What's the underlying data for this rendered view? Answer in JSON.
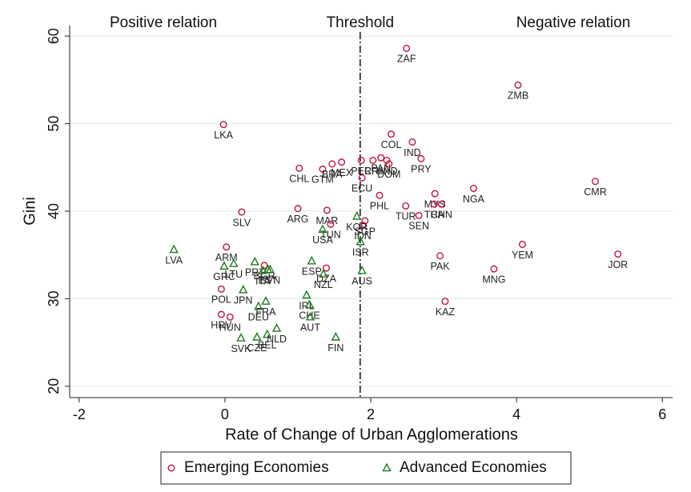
{
  "chart_data": {
    "type": "scatter",
    "annotations": {
      "left": "Positive relation",
      "right": "Negative relation"
    },
    "threshold": {
      "label": "Threshold",
      "x": 1.855
    },
    "x_label": "Rate of Change of Urban Agglomerations",
    "y_label": "Gini",
    "xlim": [
      -2.13,
      6.14
    ],
    "ylim": [
      18.7,
      61.2
    ],
    "xticks": [
      -2,
      0,
      2,
      4,
      6
    ],
    "yticks": [
      20,
      30,
      40,
      50,
      60
    ],
    "grid": true,
    "series": [
      {
        "name": "Emerging Economies",
        "color": "#c0143c",
        "marker": "circle",
        "labels": [
          "ZAF",
          "ZMB",
          "LKA",
          "COL",
          "IND",
          "PRY",
          "CHL",
          "GTM",
          "BRA",
          "MEX",
          "PER",
          "CRI",
          "PAN",
          "HND",
          "DOM",
          "ECU",
          "CMR",
          "NGA",
          "PHL",
          "MYS",
          "THA",
          "CHN",
          "TUR",
          "SEN",
          "ARG",
          "MAR",
          "TUN",
          "SLV",
          "SGP",
          "IDN",
          "YEM",
          "JOR",
          "PAK",
          "MNG",
          "KAZ",
          "ARM",
          "POL",
          "HRV",
          "HUN",
          "BGR",
          "DZA"
        ],
        "x": [
          2.49,
          4.02,
          -0.02,
          2.28,
          2.57,
          2.69,
          1.02,
          1.34,
          1.47,
          1.6,
          1.87,
          2.03,
          2.14,
          2.22,
          2.25,
          1.88,
          5.08,
          3.41,
          2.12,
          2.88,
          2.87,
          2.97,
          2.48,
          2.66,
          1.0,
          1.4,
          1.45,
          0.23,
          1.92,
          1.89,
          4.08,
          5.39,
          2.95,
          3.69,
          3.02,
          0.02,
          -0.05,
          -0.05,
          0.07,
          0.54,
          1.39
        ],
        "y": [
          58.6,
          54.4,
          49.9,
          48.8,
          47.9,
          46.0,
          44.9,
          44.8,
          45.4,
          45.6,
          45.8,
          45.8,
          46.1,
          45.8,
          45.4,
          43.8,
          43.4,
          42.6,
          41.8,
          42.0,
          40.8,
          40.8,
          40.6,
          39.5,
          40.3,
          40.1,
          38.5,
          39.9,
          38.9,
          38.4,
          36.2,
          35.1,
          34.9,
          33.4,
          29.7,
          35.9,
          31.1,
          28.2,
          27.9,
          33.8,
          33.5
        ]
      },
      {
        "name": "Advanced Economies",
        "color": "#1e7a1e",
        "marker": "triangle",
        "labels": [
          "LVA",
          "GRC",
          "LTU",
          "PRT",
          "ITA",
          "JPN",
          "EST",
          "SVN",
          "ESP",
          "NZL",
          "USA",
          "ISR",
          "AUS",
          "KOR",
          "FRA",
          "DEU",
          "IRL",
          "CHE",
          "AUT",
          "BEL",
          "NLD",
          "CZE",
          "SVK",
          "FIN"
        ],
        "x": [
          -0.7,
          -0.01,
          0.12,
          0.41,
          0.52,
          0.25,
          0.59,
          0.62,
          1.19,
          1.35,
          1.34,
          1.86,
          1.88,
          1.81,
          0.56,
          0.46,
          1.12,
          1.16,
          1.17,
          0.58,
          0.71,
          0.44,
          0.22,
          1.52
        ],
        "y": [
          35.6,
          33.7,
          34.0,
          34.2,
          33.2,
          31.0,
          33.3,
          33.3,
          34.3,
          32.8,
          37.9,
          36.5,
          33.2,
          39.4,
          29.7,
          29.1,
          30.4,
          29.3,
          27.9,
          25.9,
          26.6,
          25.6,
          25.5,
          25.6
        ]
      }
    ]
  }
}
